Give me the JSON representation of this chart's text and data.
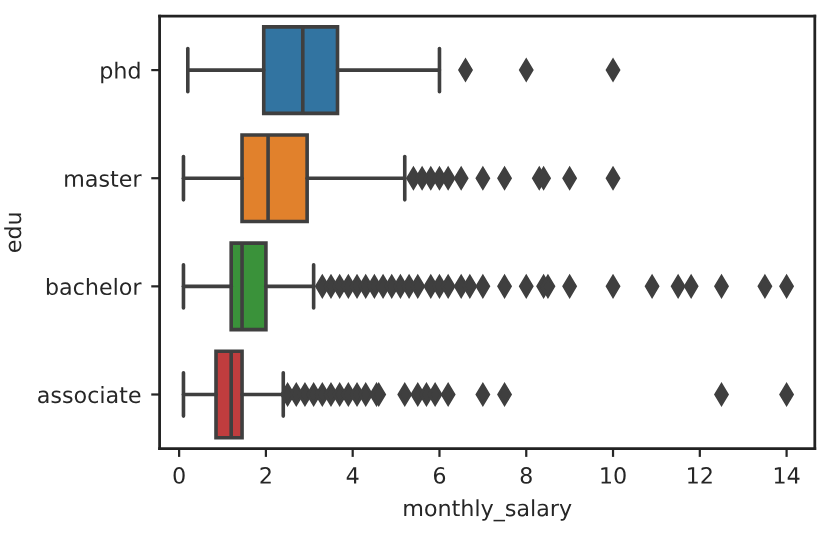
{
  "chart_data": {
    "type": "box",
    "orientation": "horizontal",
    "xlabel": "monthly_salary",
    "ylabel": "edu",
    "categories": [
      "phd",
      "master",
      "bachelor",
      "associate"
    ],
    "colors": [
      "#3274a1",
      "#e1812c",
      "#3a923a",
      "#c03d3e"
    ],
    "boxes": [
      {
        "low": 0.2,
        "q1": 1.95,
        "median": 2.85,
        "q3": 3.65,
        "high": 6.0,
        "outliers": [
          6.6,
          8.0,
          10.0
        ]
      },
      {
        "low": 0.1,
        "q1": 1.45,
        "median": 2.05,
        "q3": 2.95,
        "high": 5.2,
        "outliers": [
          5.4,
          5.6,
          5.8,
          6.0,
          6.2,
          6.5,
          7.0,
          7.5,
          8.3,
          8.4,
          9.0,
          10.0
        ]
      },
      {
        "low": 0.1,
        "q1": 1.2,
        "median": 1.45,
        "q3": 2.0,
        "high": 3.1,
        "outliers": [
          3.3,
          3.5,
          3.7,
          3.9,
          4.1,
          4.3,
          4.5,
          4.7,
          4.9,
          5.1,
          5.3,
          5.5,
          5.8,
          6.0,
          6.2,
          6.5,
          6.7,
          7.0,
          7.5,
          8.0,
          8.4,
          8.5,
          9.0,
          10.0,
          10.9,
          11.5,
          11.8,
          12.5,
          13.5,
          14.0
        ]
      },
      {
        "low": 0.1,
        "q1": 0.85,
        "median": 1.2,
        "q3": 1.45,
        "high": 2.4,
        "outliers": [
          2.5,
          2.7,
          2.9,
          3.1,
          3.3,
          3.5,
          3.7,
          3.9,
          4.1,
          4.3,
          4.55,
          4.6,
          5.2,
          5.5,
          5.7,
          5.9,
          6.2,
          7.0,
          7.5,
          12.5,
          14.0
        ]
      }
    ],
    "xlim": [
      -0.45,
      14.65
    ],
    "xticks": [
      0,
      2,
      4,
      6,
      8,
      10,
      12,
      14
    ],
    "marker": "diamond",
    "grid": false,
    "legend": false
  }
}
